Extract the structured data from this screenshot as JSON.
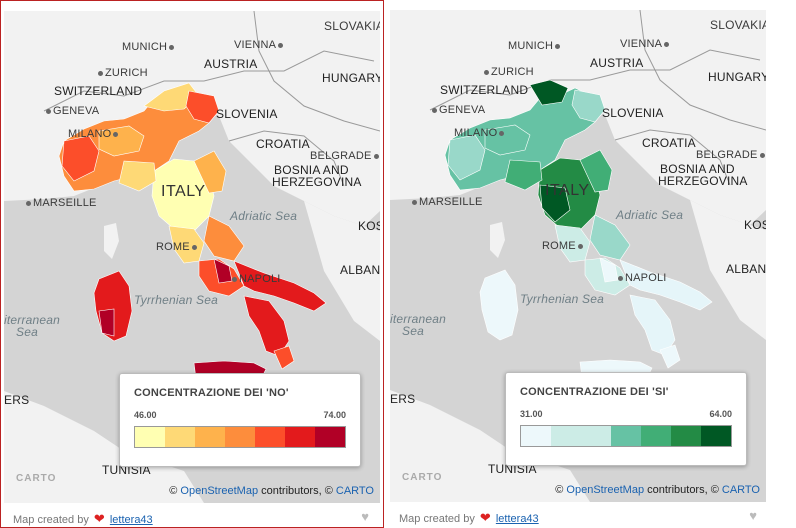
{
  "panels": [
    {
      "id": "no",
      "cities": [
        "MUNICH",
        "VIENNA",
        "ZURICH",
        "GENEVA",
        "MILANO",
        "MARSEILLE",
        "ROME",
        "NAPOLI",
        "BELGRADE"
      ],
      "countries": [
        "SLOVAKIA",
        "AUSTRIA",
        "HUNGARY",
        "SWITZERLAND",
        "SLOVENIA",
        "CROATIA",
        "BOSNIA AND",
        "HERZEGOVINA",
        "ITALY",
        "KOS",
        "ALBANI",
        "TUNISIA",
        "ERS"
      ],
      "seas": [
        "Adriatic Sea",
        "Tyrrhenian Sea",
        "iterranean",
        "Sea"
      ],
      "legend": {
        "title": "CONCENTRAZIONE DEI 'NO'",
        "min": "46.00",
        "max": "74.00",
        "colors": [
          "#ffffb2",
          "#fed976",
          "#feb24c",
          "#fd8d3c",
          "#fc4e2a",
          "#e31a1c",
          "#b10026"
        ]
      }
    },
    {
      "id": "si",
      "cities": [
        "MUNICH",
        "VIENNA",
        "ZURICH",
        "GENEVA",
        "MILANO",
        "MARSEILLE",
        "ROME",
        "NAPOLI",
        "BELGRADE"
      ],
      "countries": [
        "SLOVAKIA",
        "AUSTRIA",
        "HUNGARY",
        "SWITZERLAND",
        "SLOVENIA",
        "CROATIA",
        "BOSNIA AND",
        "HERZEGOVINA",
        "ITALY",
        "KOS",
        "ALBANI",
        "TUNISIA",
        "ERS"
      ],
      "seas": [
        "Adriatic Sea",
        "Tyrrhenian Sea",
        "iterranean",
        "Sea"
      ],
      "legend": {
        "title": "CONCENTRAZIONE DEI 'SI'",
        "min": "31.00",
        "max": "64.00",
        "colors": [
          "#edf8fb",
          "#ccece6",
          "#ccece6",
          "#66c2a4",
          "#41ae76",
          "#238b45",
          "#005824"
        ]
      }
    }
  ],
  "attribution": {
    "prefix": "©",
    "osm": "OpenStreetMap",
    "mid": "contributors, ©",
    "carto": "CARTO"
  },
  "carto_logo": "CARTO",
  "footer": {
    "text": "Map created by",
    "link": "lettera43"
  }
}
